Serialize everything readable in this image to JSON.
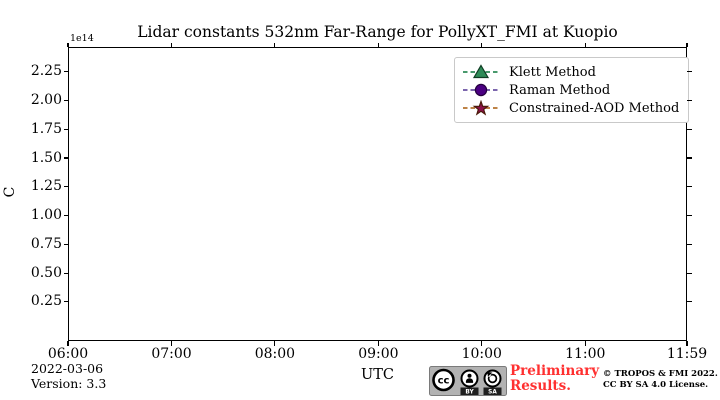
{
  "figure": {
    "title": "Lidar constants 532nm Far-Range for PollyXT_FMI at Kuopio",
    "y_offset_label": "1e14",
    "ylabel": "C",
    "xlabel": "UTC",
    "date_label": "2022-03-06",
    "version_label": "Version: 3.3",
    "watermark": {
      "line1": "Preliminary",
      "line2": "Results.",
      "color": "#ff3030"
    },
    "license": {
      "badge_cc": "cc",
      "badge_by": "BY",
      "badge_sa": "SA",
      "line1": "© TROPOS & FMI 2022.",
      "line2": "CC BY SA 4.0 License."
    }
  },
  "chart_data": {
    "type": "line",
    "title": "Lidar constants 532nm Far-Range for PollyXT_FMI at Kuopio",
    "xlabel": "UTC",
    "ylabel": "C",
    "y_scale_factor": "1e14",
    "grid": false,
    "legend_position": "upper right",
    "xlim_minutes": [
      360,
      719
    ],
    "ylim": [
      -0.09,
      2.465
    ],
    "x_ticks": [
      {
        "minutes": 360,
        "label": "06:00"
      },
      {
        "minutes": 420,
        "label": "07:00"
      },
      {
        "minutes": 480,
        "label": "08:00"
      },
      {
        "minutes": 540,
        "label": "09:00"
      },
      {
        "minutes": 600,
        "label": "10:00"
      },
      {
        "minutes": 660,
        "label": "11:00"
      },
      {
        "minutes": 719,
        "label": "11:59"
      }
    ],
    "y_ticks": [
      {
        "value": 0.25,
        "label": "0.25"
      },
      {
        "value": 0.5,
        "label": "0.50"
      },
      {
        "value": 0.75,
        "label": "0.75"
      },
      {
        "value": 1.0,
        "label": "1.00"
      },
      {
        "value": 1.25,
        "label": "1.25"
      },
      {
        "value": 1.5,
        "label": "1.50"
      },
      {
        "value": 1.75,
        "label": "1.75"
      },
      {
        "value": 2.0,
        "label": "2.00"
      },
      {
        "value": 2.25,
        "label": "2.25"
      }
    ],
    "series": [
      {
        "name": "Klett Method",
        "marker": "triangle",
        "marker_color": "#2e8b57",
        "marker_edge": "#0f3d23",
        "line_color": "#2e8b57",
        "x": [],
        "values": []
      },
      {
        "name": "Raman Method",
        "marker": "circle",
        "marker_color": "#4b0082",
        "marker_edge": "#26003f",
        "line_color": "#6a51a3",
        "x": [],
        "values": []
      },
      {
        "name": "Constrained-AOD Method",
        "marker": "star",
        "marker_color": "#8b1048",
        "marker_edge": "#4a1a0a",
        "line_color": "#b5722d",
        "x": [],
        "values": []
      }
    ]
  }
}
